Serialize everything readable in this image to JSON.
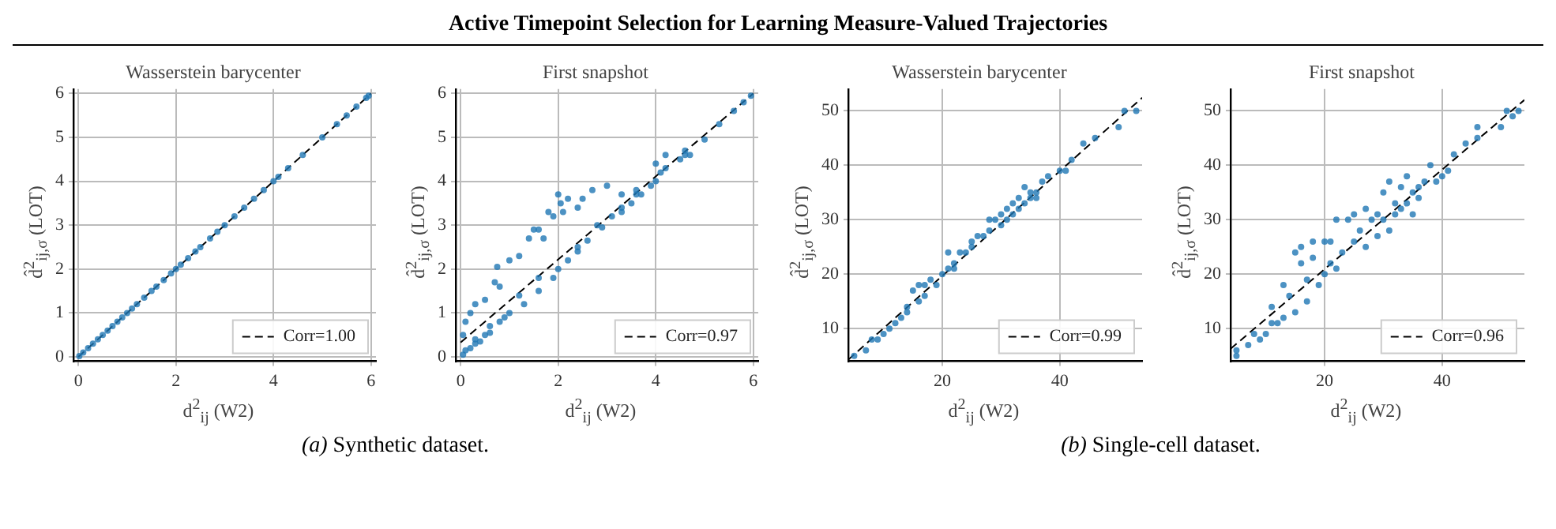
{
  "chart_data": [
    {
      "type": "other",
      "title": "Active Timepoint Selection for Learning Measure-Valued Trajectories",
      "annotations": [
        "(a) Synthetic dataset.",
        "(b) Single-cell dataset."
      ]
    },
    {
      "type": "scatter",
      "title": "Wasserstein barycenter",
      "xlabel": "d$^{2}$$_{ij}$ (W2)",
      "ylabel": "d̂$^{2}$$_{ij,σ}$ (LOT)",
      "xlim": [
        -0.1,
        6.1
      ],
      "ylim": [
        -0.1,
        6.1
      ],
      "xticks": [
        0,
        2,
        4,
        6
      ],
      "yticks": [
        0,
        1,
        2,
        3,
        4,
        5,
        6
      ],
      "grid": true,
      "legend": "bottom right",
      "series": [
        {
          "color": "#1f77b4",
          "marker": "circle",
          "x": [
            0.02,
            0.1,
            0.2,
            0.3,
            0.4,
            0.5,
            0.6,
            0.7,
            0.8,
            0.9,
            1.0,
            1.1,
            1.2,
            1.35,
            1.5,
            1.6,
            1.75,
            1.9,
            2.0,
            2.1,
            2.25,
            2.4,
            2.5,
            2.7,
            2.85,
            3.0,
            3.2,
            3.4,
            3.6,
            3.8,
            4.0,
            4.1,
            4.3,
            4.6,
            5.0,
            5.3,
            5.5,
            5.7,
            5.9,
            5.95
          ],
          "values": [
            0.02,
            0.1,
            0.2,
            0.3,
            0.4,
            0.5,
            0.6,
            0.7,
            0.8,
            0.9,
            1.0,
            1.1,
            1.2,
            1.35,
            1.5,
            1.6,
            1.75,
            1.9,
            2.0,
            2.1,
            2.25,
            2.4,
            2.5,
            2.7,
            2.85,
            3.0,
            3.2,
            3.4,
            3.6,
            3.8,
            4.0,
            4.1,
            4.3,
            4.6,
            5.0,
            5.3,
            5.5,
            5.7,
            5.9,
            5.95
          ]
        },
        {
          "type": "line",
          "name": "Corr=1.00",
          "color": "#000000",
          "marker": "none",
          "line_style": "dashed",
          "x": [
            0,
            6
          ],
          "values": [
            0,
            6
          ]
        }
      ]
    },
    {
      "type": "scatter",
      "title": "First snapshot",
      "xlabel": "d$^{2}$$_{ij}$ (W2)",
      "ylabel": "d̂$^{2}$$_{ij,σ}$ (LOT)",
      "xlim": [
        -0.1,
        6.1
      ],
      "ylim": [
        -0.1,
        6.1
      ],
      "xticks": [
        0,
        2,
        4,
        6
      ],
      "yticks": [
        0,
        1,
        2,
        3,
        4,
        5,
        6
      ],
      "grid": true,
      "legend": "bottom right",
      "series": [
        {
          "color": "#1f77b4",
          "marker": "circle",
          "x": [
            0.05,
            0.1,
            0.2,
            0.3,
            0.4,
            0.5,
            0.6,
            0.8,
            1.0,
            1.3,
            1.6,
            1.9,
            2.0,
            2.2,
            2.4,
            2.6,
            2.9,
            3.1,
            3.3,
            3.5,
            3.7,
            3.9,
            4.0,
            4.1,
            4.5,
            4.7,
            5.0,
            5.3,
            5.6,
            5.8,
            5.95,
            0.3,
            0.6,
            0.9,
            1.2,
            1.6,
            2.4,
            2.8,
            3.3,
            3.6,
            4.2,
            4.6,
            0.05,
            0.1,
            0.2,
            0.3,
            0.5,
            0.7,
            0.75,
            0.8,
            1.0,
            1.2,
            1.4,
            1.5,
            1.6,
            1.7,
            1.8,
            1.9,
            2.0,
            2.05,
            2.1,
            2.2,
            2.4,
            2.5,
            2.7,
            3.0,
            3.3,
            3.6,
            4.0,
            4.2,
            4.6
          ],
          "values": [
            0.05,
            0.15,
            0.2,
            0.3,
            0.35,
            0.5,
            0.55,
            0.8,
            1.0,
            1.2,
            1.5,
            1.8,
            2.0,
            2.2,
            2.4,
            2.65,
            2.95,
            3.2,
            3.3,
            3.5,
            3.7,
            3.9,
            4.0,
            4.2,
            4.5,
            4.6,
            4.95,
            5.3,
            5.6,
            5.8,
            5.95,
            0.4,
            0.7,
            0.9,
            1.4,
            1.8,
            2.5,
            3.0,
            3.4,
            3.7,
            4.3,
            4.6,
            0.5,
            0.8,
            1.0,
            1.2,
            1.3,
            1.7,
            2.05,
            1.6,
            2.2,
            2.3,
            2.7,
            2.9,
            2.9,
            2.7,
            3.3,
            3.2,
            3.7,
            3.5,
            3.3,
            3.6,
            3.4,
            3.6,
            3.8,
            3.9,
            3.7,
            3.8,
            4.4,
            4.6,
            4.7
          ]
        },
        {
          "type": "line",
          "name": "Corr=0.97",
          "color": "#000000",
          "marker": "none",
          "line_style": "dashed",
          "x": [
            0,
            6
          ],
          "values": [
            0.33,
            6
          ]
        }
      ]
    },
    {
      "type": "scatter",
      "title": "Wasserstein barycenter",
      "xlabel": "d$^{2}$$_{ij}$ (W2)",
      "ylabel": "d̂$^{2}$$_{ij,σ}$ (LOT)",
      "xlim": [
        4,
        54
      ],
      "ylim": [
        4,
        54
      ],
      "xticks": [
        20,
        40
      ],
      "yticks": [
        10,
        20,
        30,
        40,
        50
      ],
      "grid": true,
      "legend": "bottom right",
      "series": [
        {
          "color": "#1f77b4",
          "marker": "circle",
          "x": [
            5,
            7,
            8,
            9,
            10,
            11,
            12,
            13,
            14,
            14,
            15,
            16,
            16,
            17,
            17,
            18,
            19,
            20,
            21,
            21,
            22,
            22,
            23,
            24,
            25,
            25,
            26,
            27,
            28,
            28,
            29,
            30,
            30,
            31,
            31,
            32,
            32,
            33,
            33,
            34,
            34,
            35,
            35,
            36,
            36,
            37,
            38,
            40,
            41,
            42,
            44,
            46,
            50,
            51,
            53
          ],
          "values": [
            5,
            6,
            8,
            8,
            9,
            10,
            11,
            12,
            13,
            14,
            17,
            18,
            15,
            16,
            18,
            19,
            18,
            20,
            21,
            24,
            22,
            21,
            24,
            24,
            25,
            26,
            27,
            27,
            28,
            30,
            30,
            29,
            31,
            30,
            32,
            33,
            31,
            32,
            34,
            33,
            36,
            34,
            35,
            35,
            34,
            37,
            38,
            39,
            39,
            41,
            44,
            45,
            47,
            50,
            50
          ]
        },
        {
          "type": "line",
          "name": "Corr=0.99",
          "color": "#000000",
          "marker": "none",
          "line_style": "dashed",
          "x": [
            4,
            54
          ],
          "values": [
            4.3,
            52.4
          ]
        }
      ]
    },
    {
      "type": "scatter",
      "title": "First snapshot",
      "xlabel": "d$^{2}$$_{ij}$ (W2)",
      "ylabel": "d̂$^{2}$$_{ij,σ}$ (LOT)",
      "xlim": [
        4,
        54
      ],
      "ylim": [
        4,
        54
      ],
      "xticks": [
        20,
        40
      ],
      "yticks": [
        10,
        20,
        30,
        40,
        50
      ],
      "grid": true,
      "legend": "bottom right",
      "series": [
        {
          "color": "#1f77b4",
          "marker": "circle",
          "x": [
            5,
            5,
            7,
            8,
            9,
            10,
            11,
            11,
            12,
            13,
            13,
            14,
            15,
            15,
            16,
            16,
            17,
            17,
            18,
            18,
            19,
            20,
            20,
            21,
            21,
            22,
            22,
            23,
            24,
            25,
            25,
            26,
            27,
            27,
            28,
            29,
            29,
            30,
            30,
            31,
            31,
            32,
            32,
            33,
            33,
            34,
            34,
            35,
            35,
            36,
            36,
            37,
            38,
            39,
            40,
            41,
            42,
            44,
            46,
            46,
            50,
            51,
            52,
            53
          ],
          "values": [
            5,
            6,
            7,
            9,
            8,
            9,
            14,
            11,
            11,
            12,
            18,
            16,
            24,
            13,
            22,
            25,
            19,
            15,
            26,
            23,
            18,
            20,
            26,
            26,
            22,
            30,
            21,
            24,
            30,
            31,
            26,
            28,
            32,
            25,
            30,
            27,
            31,
            30,
            35,
            28,
            37,
            33,
            31,
            36,
            32,
            38,
            33,
            35,
            31,
            36,
            34,
            37,
            40,
            37,
            38,
            39,
            42,
            44,
            47,
            45,
            47,
            50,
            49,
            50
          ]
        },
        {
          "type": "line",
          "name": "Corr=0.96",
          "color": "#000000",
          "marker": "none",
          "line_style": "dashed",
          "x": [
            4,
            54
          ],
          "values": [
            6.3,
            52
          ]
        }
      ]
    }
  ]
}
